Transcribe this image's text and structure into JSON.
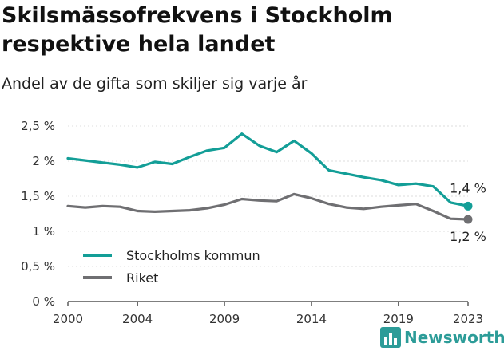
{
  "title": "Skilsmässofrekvens i Stockholm respektive hela landet",
  "subtitle": "Andel av de gifta som skiljer sig varje år",
  "brand": "Newsworthy",
  "colors": {
    "stockholm": "#139e97",
    "riket": "#6f6f72",
    "axis": "#333333",
    "grid": "#dddddd",
    "brand": "#2c9c98"
  },
  "chart_data": {
    "type": "line",
    "x": [
      2000,
      2001,
      2002,
      2003,
      2004,
      2005,
      2006,
      2007,
      2008,
      2009,
      2010,
      2011,
      2012,
      2013,
      2014,
      2015,
      2016,
      2017,
      2018,
      2019,
      2020,
      2021,
      2022,
      2023
    ],
    "xticks": [
      "2000",
      "2004",
      "2009",
      "2014",
      "2019",
      "2023"
    ],
    "xtick_values": [
      2000,
      2004,
      2009,
      2014,
      2019,
      2023
    ],
    "yticks": [
      "0 %",
      "0,5 %",
      "1 %",
      "1,5 %",
      "2 %",
      "2,5 %"
    ],
    "ytick_values": [
      0,
      0.5,
      1,
      1.5,
      2,
      2.5
    ],
    "ylim": [
      0,
      2.5
    ],
    "xlim": [
      2000,
      2023
    ],
    "grid": true,
    "legend_position": "bottom-left",
    "series": [
      {
        "name": "Stockholms kommun",
        "color": "#139e97",
        "end_label": "1,4 %",
        "values": [
          2.04,
          2.01,
          1.98,
          1.95,
          1.91,
          1.99,
          1.96,
          2.06,
          2.15,
          2.19,
          2.39,
          2.22,
          2.13,
          2.29,
          2.11,
          1.87,
          1.82,
          1.77,
          1.73,
          1.66,
          1.68,
          1.64,
          1.41,
          1.36
        ]
      },
      {
        "name": "Riket",
        "color": "#6f6f72",
        "end_label": "1,2 %",
        "values": [
          1.36,
          1.34,
          1.36,
          1.35,
          1.29,
          1.28,
          1.29,
          1.3,
          1.33,
          1.38,
          1.46,
          1.44,
          1.43,
          1.53,
          1.47,
          1.39,
          1.34,
          1.32,
          1.35,
          1.37,
          1.39,
          1.29,
          1.18,
          1.17
        ]
      }
    ]
  }
}
